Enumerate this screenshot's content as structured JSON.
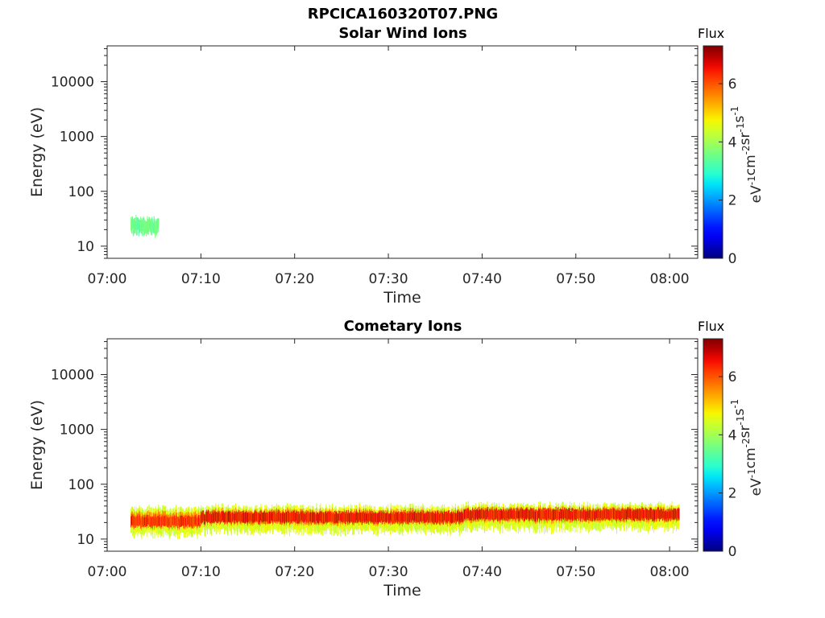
{
  "figure": {
    "title": "RPCICA160320T07.PNG"
  },
  "colorbar": {
    "label": "Flux",
    "unit_base": "eV",
    "unit_terms": [
      {
        "base": "eV",
        "exp": "-1"
      },
      {
        "base": "cm",
        "exp": "-2"
      },
      {
        "base": "sr",
        "exp": "-1"
      },
      {
        "base": "s",
        "exp": "-1"
      }
    ],
    "ticks": [
      "0",
      "2",
      "4",
      "6"
    ],
    "range": [
      0,
      7.3
    ],
    "colormap": "jet"
  },
  "chart_data": [
    {
      "type": "heatmap",
      "title": "Solar Wind Ions",
      "xlabel": "Time",
      "ylabel": "Energy (eV)",
      "xscale": "time",
      "yscale": "log",
      "xlim": [
        "07:00",
        "08:03"
      ],
      "ylim": [
        6,
        45000
      ],
      "xticks": [
        "07:00",
        "07:10",
        "07:20",
        "07:30",
        "07:40",
        "07:50",
        "08:00"
      ],
      "yticks": [
        "10",
        "100",
        "1000",
        "10000"
      ],
      "grid": false,
      "bands": [
        {
          "t_start": "07:02:30",
          "t_end": "07:05:30",
          "center_eV": 24,
          "low_eV": 20,
          "high_eV": 29,
          "flux": 3.5
        }
      ]
    },
    {
      "type": "heatmap",
      "title": "Cometary Ions",
      "xlabel": "Time",
      "ylabel": "Energy (eV)",
      "xscale": "time",
      "yscale": "log",
      "xlim": [
        "07:00",
        "08:03"
      ],
      "ylim": [
        6,
        45000
      ],
      "xticks": [
        "07:00",
        "07:10",
        "07:20",
        "07:30",
        "07:40",
        "07:50",
        "08:00"
      ],
      "yticks": [
        "10",
        "100",
        "1000",
        "10000"
      ],
      "grid": false,
      "bands": [
        {
          "t_start": "07:02:30",
          "t_end": "07:10:00",
          "center_eV": 21,
          "low_eV": 14,
          "high_eV": 32,
          "flux": 6.3
        },
        {
          "t_start": "07:10:00",
          "t_end": "07:38:00",
          "center_eV": 25,
          "low_eV": 16,
          "high_eV": 34,
          "flux": 6.6
        },
        {
          "t_start": "07:38:00",
          "t_end": "08:01:00",
          "center_eV": 28,
          "low_eV": 18,
          "high_eV": 37,
          "flux": 6.6
        }
      ]
    }
  ]
}
